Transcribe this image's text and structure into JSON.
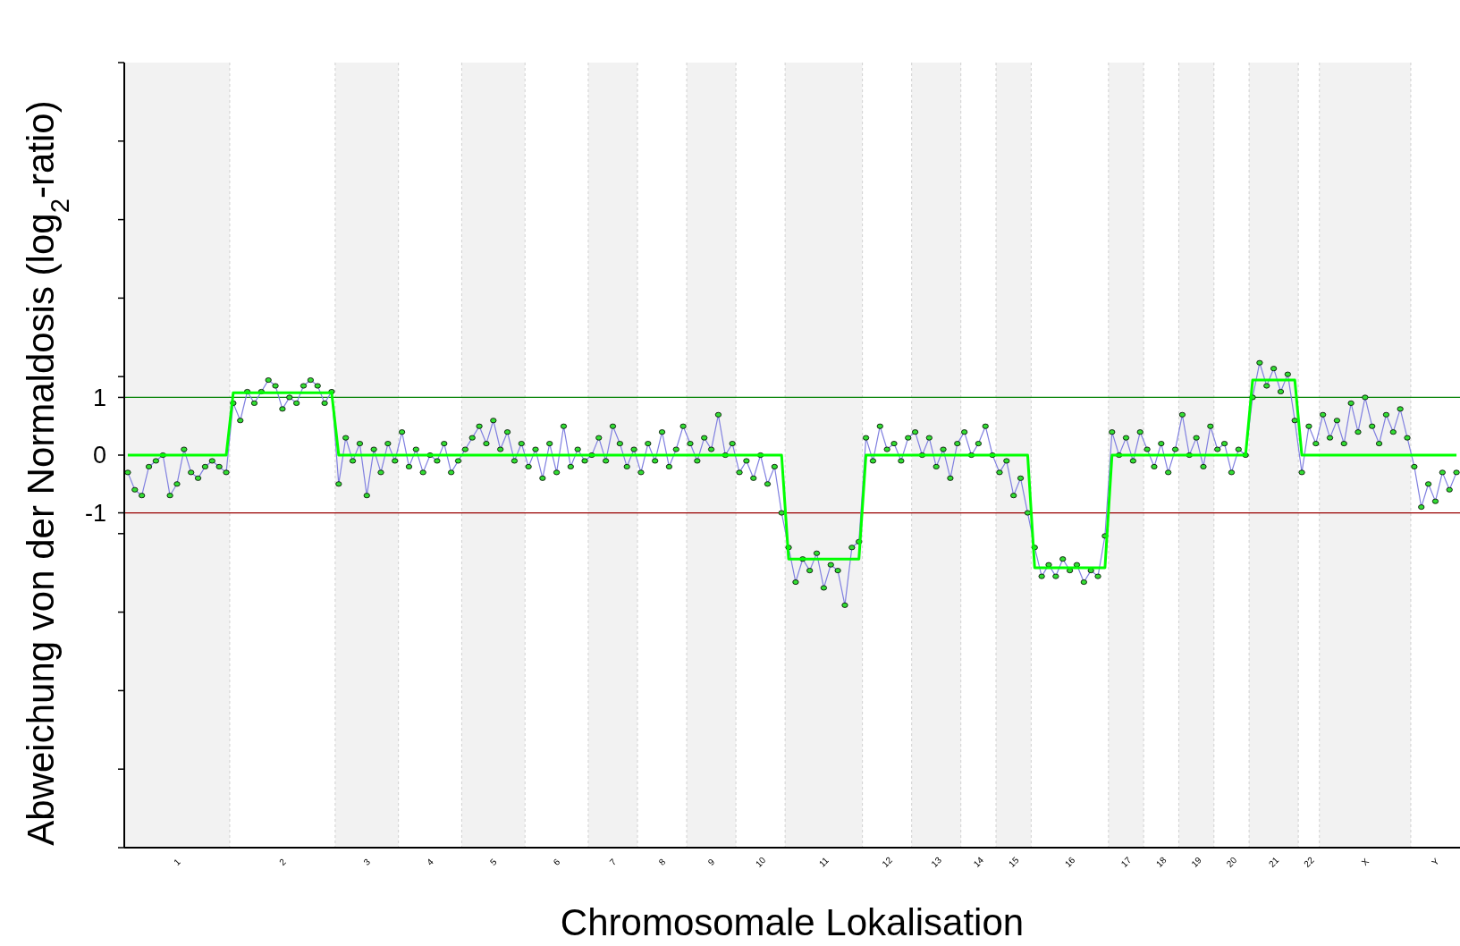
{
  "chart_data": {
    "type": "line",
    "xlabel": "Chromosomale Lokalisation",
    "ylabel": "Abweichung von der Normaldosis (log$_{2}$-ratio)",
    "categories": [
      null,
      null,
      null,
      null,
      null,
      null,
      null,
      "1",
      null,
      null,
      null,
      null,
      null,
      null,
      null,
      null,
      null,
      null,
      null,
      null,
      null,
      null,
      "2",
      null,
      null,
      null,
      null,
      null,
      null,
      null,
      null,
      null,
      null,
      null,
      "3",
      null,
      null,
      null,
      null,
      null,
      null,
      null,
      null,
      "4",
      null,
      null,
      null,
      null,
      null,
      null,
      null,
      null,
      "5",
      null,
      null,
      null,
      null,
      null,
      null,
      null,
      null,
      "6",
      null,
      null,
      null,
      null,
      null,
      null,
      null,
      "7",
      null,
      null,
      null,
      null,
      null,
      null,
      "8",
      null,
      null,
      null,
      null,
      null,
      null,
      "9",
      null,
      null,
      null,
      null,
      null,
      null,
      "10",
      null,
      null,
      null,
      null,
      null,
      null,
      null,
      null,
      "11",
      null,
      null,
      null,
      null,
      null,
      null,
      null,
      null,
      "12",
      null,
      null,
      null,
      null,
      null,
      null,
      "13",
      null,
      null,
      null,
      null,
      null,
      "14",
      null,
      null,
      null,
      null,
      "15",
      null,
      null,
      null,
      null,
      null,
      null,
      null,
      "16",
      null,
      null,
      null,
      null,
      null,
      null,
      null,
      "17",
      null,
      null,
      null,
      null,
      "18",
      null,
      null,
      null,
      null,
      "19",
      null,
      null,
      null,
      null,
      "20",
      null,
      null,
      null,
      null,
      null,
      "21",
      null,
      null,
      null,
      null,
      "22",
      null,
      null,
      null,
      null,
      null,
      null,
      null,
      "X",
      null,
      null,
      null,
      null,
      null,
      null,
      null,
      null,
      null,
      "Y",
      null,
      null,
      null
    ],
    "ylim": [
      -6.8,
      6.8
    ],
    "yticks": [
      {
        "value": -6.8,
        "label": null
      },
      {
        "value": -5.44,
        "label": null
      },
      {
        "value": -4.08,
        "label": null
      },
      {
        "value": -2.72,
        "label": null
      },
      {
        "value": -1.36,
        "label": null
      },
      -1,
      0,
      1,
      {
        "value": 1.36,
        "label": null
      },
      {
        "value": 2.72,
        "label": null
      },
      {
        "value": 4.08,
        "label": null
      },
      {
        "value": 5.44,
        "label": null
      },
      {
        "value": 6.8,
        "label": null
      }
    ],
    "grid": false,
    "ref_lines": [
      {
        "axis": "y",
        "value": 1,
        "color": "#008000"
      },
      {
        "axis": "y",
        "value": -1,
        "color": "#990000"
      }
    ],
    "series": [
      {
        "color": "#8080e0",
        "marker": "circle",
        "values": [
          -0.3,
          -0.6,
          -0.7,
          -0.2,
          -0.1,
          0.0,
          -0.7,
          -0.5,
          0.1,
          -0.3,
          -0.4,
          -0.2,
          -0.1,
          -0.2,
          -0.3,
          0.9,
          0.6,
          1.1,
          0.9,
          1.1,
          1.3,
          1.2,
          0.8,
          1.0,
          0.9,
          1.2,
          1.3,
          1.2,
          0.9,
          1.1,
          -0.5,
          0.3,
          -0.1,
          0.2,
          -0.7,
          0.1,
          -0.3,
          0.2,
          -0.1,
          0.4,
          -0.2,
          0.1,
          -0.3,
          0.0,
          -0.1,
          0.2,
          -0.3,
          -0.1,
          0.1,
          0.3,
          0.5,
          0.2,
          0.6,
          0.1,
          0.4,
          -0.1,
          0.2,
          -0.2,
          0.1,
          -0.4,
          0.2,
          -0.3,
          0.5,
          -0.2,
          0.1,
          -0.1,
          0.0,
          0.3,
          -0.1,
          0.5,
          0.2,
          -0.2,
          0.1,
          -0.3,
          0.2,
          -0.1,
          0.4,
          -0.2,
          0.1,
          0.5,
          0.2,
          -0.1,
          0.3,
          0.1,
          0.7,
          0.0,
          0.2,
          -0.3,
          -0.1,
          -0.4,
          0.0,
          -0.5,
          -0.2,
          -1.0,
          -1.6,
          -2.2,
          -1.8,
          -2.0,
          -1.7,
          -2.3,
          -1.9,
          -2.0,
          -2.6,
          -1.6,
          -1.5,
          0.3,
          -0.1,
          0.5,
          0.1,
          0.2,
          -0.1,
          0.3,
          0.4,
          0.0,
          0.3,
          -0.2,
          0.1,
          -0.4,
          0.2,
          0.4,
          0.0,
          0.2,
          0.5,
          0.0,
          -0.3,
          -0.1,
          -0.7,
          -0.4,
          -1.0,
          -1.6,
          -2.1,
          -1.9,
          -2.1,
          -1.8,
          -2.0,
          -1.9,
          -2.2,
          -2.0,
          -2.1,
          -1.4,
          0.4,
          0.0,
          0.3,
          -0.1,
          0.4,
          0.1,
          -0.2,
          0.2,
          -0.3,
          0.1,
          0.7,
          0.0,
          0.3,
          -0.2,
          0.5,
          0.1,
          0.2,
          -0.3,
          0.1,
          0.0,
          1.0,
          1.6,
          1.2,
          1.5,
          1.1,
          1.4,
          0.6,
          -0.3,
          0.5,
          0.2,
          0.7,
          0.3,
          0.6,
          0.2,
          0.9,
          0.4,
          1.0,
          0.5,
          0.2,
          0.7,
          0.4,
          0.8,
          0.3,
          -0.2,
          -0.9,
          -0.5,
          -0.8,
          -0.3,
          -0.6,
          -0.3
        ]
      },
      {
        "color": "#00ff00",
        "marker": "none",
        "values": [
          0,
          0,
          0,
          0,
          0,
          0,
          0,
          0,
          0,
          0,
          0,
          0,
          0,
          0,
          0,
          1.08,
          1.08,
          1.08,
          1.08,
          1.08,
          1.08,
          1.08,
          1.08,
          1.08,
          1.08,
          1.08,
          1.08,
          1.08,
          1.08,
          1.08,
          0,
          0,
          0,
          0,
          0,
          0,
          0,
          0,
          0,
          0,
          0,
          0,
          0,
          0,
          0,
          0,
          0,
          0,
          0,
          0,
          0,
          0,
          0,
          0,
          0,
          0,
          0,
          0,
          0,
          0,
          0,
          0,
          0,
          0,
          0,
          0,
          0,
          0,
          0,
          0,
          0,
          0,
          0,
          0,
          0,
          0,
          0,
          0,
          0,
          0,
          0,
          0,
          0,
          0,
          0,
          0,
          0,
          0,
          0,
          0,
          0,
          0,
          0,
          0,
          -1.8,
          -1.8,
          -1.8,
          -1.8,
          -1.8,
          -1.8,
          -1.8,
          -1.8,
          -1.8,
          -1.8,
          -1.8,
          0,
          0,
          0,
          0,
          0,
          0,
          0,
          0,
          0,
          0,
          0,
          0,
          0,
          0,
          0,
          0,
          0,
          0,
          0,
          0,
          0,
          0,
          0,
          0,
          -1.95,
          -1.95,
          -1.95,
          -1.95,
          -1.95,
          -1.95,
          -1.95,
          -1.95,
          -1.95,
          -1.95,
          -1.95,
          0,
          0,
          0,
          0,
          0,
          0,
          0,
          0,
          0,
          0,
          0,
          0,
          0,
          0,
          0,
          0,
          0,
          0,
          0,
          0,
          1.3,
          1.3,
          1.3,
          1.3,
          1.3,
          1.3,
          1.3,
          0,
          0,
          0,
          0,
          0,
          0,
          0,
          0,
          0,
          0,
          0,
          0,
          0,
          0,
          0,
          0,
          0,
          0,
          0,
          0,
          0,
          0,
          0
        ]
      }
    ]
  }
}
